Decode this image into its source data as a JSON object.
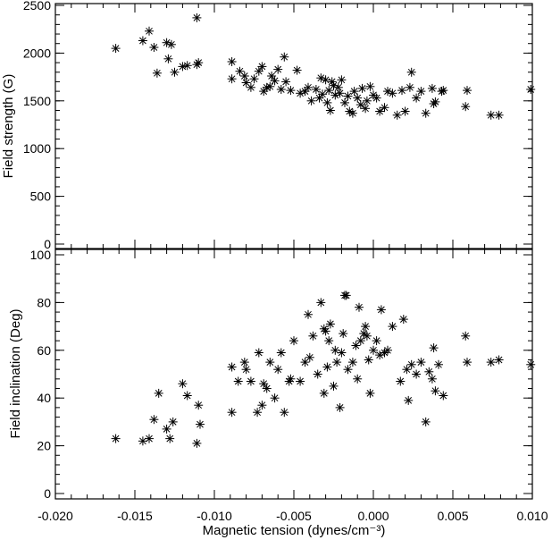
{
  "chart_data": [
    {
      "type": "scatter",
      "panel": "top",
      "marker": "asterisk",
      "marker_color": "#000000",
      "ylabel": "Field strength (G)",
      "xlabel": "",
      "xlim": [
        -0.02,
        0.01
      ],
      "ylim": [
        0,
        2500
      ],
      "xticks": [
        -0.02,
        -0.015,
        -0.01,
        -0.005,
        0.0,
        0.005,
        0.01
      ],
      "yticks": [
        0,
        500,
        1000,
        1500,
        2000,
        2500
      ],
      "ytick_labels": [
        "0",
        "500",
        "1000",
        "1500",
        "2000",
        "2500"
      ],
      "series": [
        {
          "points": [
            [
              -0.0162,
              2050
            ],
            [
              -0.0145,
              2130
            ],
            [
              -0.0141,
              2230
            ],
            [
              -0.0138,
              2060
            ],
            [
              -0.0136,
              1790
            ],
            [
              -0.013,
              2110
            ],
            [
              -0.0127,
              2090
            ],
            [
              -0.0129,
              1940
            ],
            [
              -0.0125,
              1800
            ],
            [
              -0.012,
              1860
            ],
            [
              -0.0117,
              1870
            ],
            [
              -0.0111,
              2370
            ],
            [
              -0.011,
              1900
            ],
            [
              -0.0111,
              1880
            ],
            [
              -0.0089,
              1910
            ],
            [
              -0.0089,
              1730
            ],
            [
              -0.0084,
              1810
            ],
            [
              -0.0081,
              1760
            ],
            [
              -0.008,
              1690
            ],
            [
              -0.0077,
              1640
            ],
            [
              -0.0075,
              1730
            ],
            [
              -0.0072,
              1810
            ],
            [
              -0.007,
              1860
            ],
            [
              -0.0069,
              1600
            ],
            [
              -0.0067,
              1640
            ],
            [
              -0.0065,
              1650
            ],
            [
              -0.0064,
              1760
            ],
            [
              -0.0062,
              1710
            ],
            [
              -0.006,
              1830
            ],
            [
              -0.0058,
              1620
            ],
            [
              -0.0056,
              1960
            ],
            [
              -0.0055,
              1700
            ],
            [
              -0.0052,
              1610
            ],
            [
              -0.0048,
              1820
            ],
            [
              -0.0046,
              1580
            ],
            [
              -0.0043,
              1600
            ],
            [
              -0.0041,
              1640
            ],
            [
              -0.0039,
              1500
            ],
            [
              -0.0036,
              1620
            ],
            [
              -0.0034,
              1530
            ],
            [
              -0.0033,
              1740
            ],
            [
              -0.0032,
              1570
            ],
            [
              -0.003,
              1720
            ],
            [
              -0.0029,
              1480
            ],
            [
              -0.0028,
              1610
            ],
            [
              -0.0027,
              1400
            ],
            [
              -0.0026,
              1700
            ],
            [
              -0.0025,
              1660
            ],
            [
              -0.0024,
              1560
            ],
            [
              -0.0022,
              1640
            ],
            [
              -0.0021,
              1580
            ],
            [
              -0.002,
              1720
            ],
            [
              -0.0018,
              1480
            ],
            [
              -0.0016,
              1550
            ],
            [
              -0.0015,
              1390
            ],
            [
              -0.0013,
              1370
            ],
            [
              -0.0012,
              1600
            ],
            [
              -0.001,
              1530
            ],
            [
              -0.0008,
              1460
            ],
            [
              -0.0007,
              1630
            ],
            [
              -0.0005,
              1420
            ],
            [
              -0.0004,
              1500
            ],
            [
              -0.0002,
              1650
            ],
            [
              0.0,
              1560
            ],
            [
              0.0002,
              1530
            ],
            [
              0.0004,
              1390
            ],
            [
              0.0007,
              1430
            ],
            [
              0.0009,
              1600
            ],
            [
              0.0012,
              1580
            ],
            [
              0.0015,
              1350
            ],
            [
              0.0018,
              1610
            ],
            [
              0.002,
              1390
            ],
            [
              0.0023,
              1640
            ],
            [
              0.0024,
              1800
            ],
            [
              0.0027,
              1530
            ],
            [
              0.003,
              1600
            ],
            [
              0.0033,
              1370
            ],
            [
              0.0037,
              1630
            ],
            [
              0.0038,
              1470
            ],
            [
              0.0039,
              1490
            ],
            [
              0.0043,
              1600
            ],
            [
              0.0044,
              1610
            ],
            [
              0.0058,
              1440
            ],
            [
              0.0059,
              1610
            ],
            [
              0.0074,
              1350
            ],
            [
              0.0079,
              1350
            ],
            [
              0.0099,
              1620
            ]
          ]
        }
      ]
    },
    {
      "type": "scatter",
      "panel": "bottom",
      "marker": "asterisk",
      "marker_color": "#000000",
      "ylabel": "Field inclination (Deg)",
      "xlabel": "Magnetic tension (dynes/cm⁻³)",
      "xlim": [
        -0.02,
        0.01
      ],
      "ylim": [
        0,
        100
      ],
      "xticks": [
        -0.02,
        -0.015,
        -0.01,
        -0.005,
        0.0,
        0.005,
        0.01
      ],
      "xtick_labels": [
        "-0.020",
        "-0.015",
        "-0.010",
        "-0.005",
        "0.000",
        "0.005",
        "0.010"
      ],
      "yticks": [
        0,
        20,
        40,
        60,
        80,
        100
      ],
      "ytick_labels": [
        "0",
        "20",
        "40",
        "60",
        "80",
        "100"
      ],
      "series": [
        {
          "points": [
            [
              -0.0162,
              23
            ],
            [
              -0.0145,
              22
            ],
            [
              -0.0141,
              23
            ],
            [
              -0.0138,
              31
            ],
            [
              -0.0135,
              42
            ],
            [
              -0.013,
              27
            ],
            [
              -0.0128,
              23
            ],
            [
              -0.0126,
              30
            ],
            [
              -0.012,
              46
            ],
            [
              -0.0117,
              41
            ],
            [
              -0.0111,
              21
            ],
            [
              -0.011,
              37
            ],
            [
              -0.0109,
              29
            ],
            [
              -0.0089,
              34
            ],
            [
              -0.0089,
              53
            ],
            [
              -0.0085,
              47
            ],
            [
              -0.0081,
              55
            ],
            [
              -0.008,
              52
            ],
            [
              -0.0077,
              47
            ],
            [
              -0.0073,
              34
            ],
            [
              -0.0072,
              59
            ],
            [
              -0.007,
              37
            ],
            [
              -0.0069,
              46
            ],
            [
              -0.0067,
              44
            ],
            [
              -0.0065,
              55
            ],
            [
              -0.0062,
              40
            ],
            [
              -0.006,
              52
            ],
            [
              -0.0058,
              59
            ],
            [
              -0.0056,
              34
            ],
            [
              -0.0053,
              47
            ],
            [
              -0.0052,
              48
            ],
            [
              -0.005,
              64
            ],
            [
              -0.0046,
              47
            ],
            [
              -0.0043,
              55
            ],
            [
              -0.0041,
              75
            ],
            [
              -0.004,
              57
            ],
            [
              -0.0038,
              66
            ],
            [
              -0.0035,
              50
            ],
            [
              -0.0033,
              80
            ],
            [
              -0.0031,
              42
            ],
            [
              -0.0031,
              69
            ],
            [
              -0.003,
              68
            ],
            [
              -0.0029,
              53
            ],
            [
              -0.0028,
              64
            ],
            [
              -0.0027,
              71
            ],
            [
              -0.0025,
              45
            ],
            [
              -0.0024,
              60
            ],
            [
              -0.0023,
              55
            ],
            [
              -0.0021,
              36
            ],
            [
              -0.002,
              59
            ],
            [
              -0.0019,
              67
            ],
            [
              -0.0018,
              83
            ],
            [
              -0.0017,
              83
            ],
            [
              -0.0016,
              52
            ],
            [
              -0.0013,
              55
            ],
            [
              -0.0011,
              62
            ],
            [
              -0.001,
              48
            ],
            [
              -0.0009,
              78
            ],
            [
              -0.0008,
              64
            ],
            [
              -0.0006,
              67
            ],
            [
              -0.0005,
              70
            ],
            [
              -0.0004,
              66
            ],
            [
              -0.0003,
              56
            ],
            [
              -0.0002,
              42
            ],
            [
              0.0,
              60
            ],
            [
              0.0002,
              64
            ],
            [
              0.0004,
              58
            ],
            [
              0.0005,
              77
            ],
            [
              0.0007,
              59
            ],
            [
              0.0009,
              60
            ],
            [
              0.0012,
              70
            ],
            [
              0.0017,
              47
            ],
            [
              0.0019,
              73
            ],
            [
              0.0021,
              52
            ],
            [
              0.0022,
              39
            ],
            [
              0.0024,
              54
            ],
            [
              0.0027,
              50
            ],
            [
              0.003,
              55
            ],
            [
              0.0033,
              30
            ],
            [
              0.0035,
              51
            ],
            [
              0.0037,
              48
            ],
            [
              0.0038,
              61
            ],
            [
              0.0039,
              43
            ],
            [
              0.0041,
              54
            ],
            [
              0.0044,
              41
            ],
            [
              0.0058,
              66
            ],
            [
              0.0059,
              55
            ],
            [
              0.0074,
              55
            ],
            [
              0.0079,
              56
            ],
            [
              0.0099,
              54
            ]
          ]
        }
      ]
    }
  ]
}
